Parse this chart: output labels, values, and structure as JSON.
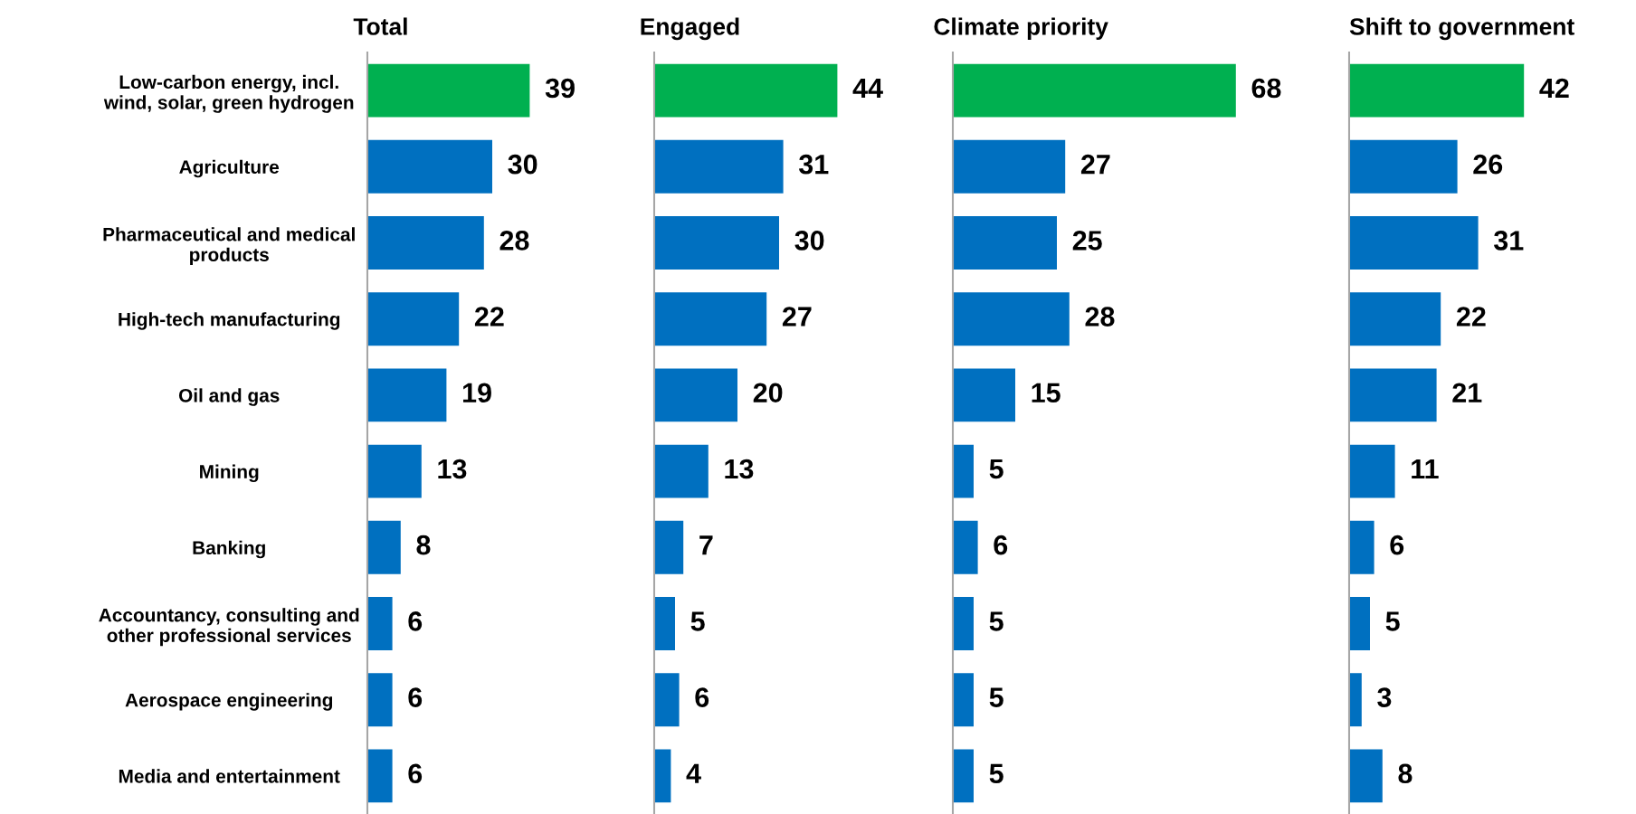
{
  "chart_data": [
    {
      "type": "bar",
      "orientation": "horizontal",
      "title": "Total",
      "categories": [
        "Low-carbon energy, incl.\nwind, solar, green hydrogen",
        "Agriculture",
        "Pharmaceutical and medical\nproducts",
        "High-tech manufacturing",
        "Oil and gas",
        "Mining",
        "Banking",
        "Accountancy, consulting and\nother professional services",
        "Aerospace engineering",
        "Media and entertainment"
      ],
      "values": [
        39,
        30,
        28,
        22,
        19,
        13,
        8,
        6,
        6,
        6
      ],
      "colors": [
        "#00b050",
        "#0070c0",
        "#0070c0",
        "#0070c0",
        "#0070c0",
        "#0070c0",
        "#0070c0",
        "#0070c0",
        "#0070c0",
        "#0070c0"
      ],
      "data_labels": true,
      "tick_labels": "y"
    },
    {
      "type": "bar",
      "orientation": "horizontal",
      "title": "Engaged",
      "categories": [
        null,
        null,
        null,
        null,
        null,
        null,
        null,
        null,
        null,
        null
      ],
      "values": [
        44,
        31,
        30,
        27,
        20,
        13,
        7,
        5,
        6,
        4
      ],
      "colors": [
        "#00b050",
        "#0070c0",
        "#0070c0",
        "#0070c0",
        "#0070c0",
        "#0070c0",
        "#0070c0",
        "#0070c0",
        "#0070c0",
        "#0070c0"
      ],
      "data_labels": true
    },
    {
      "type": "bar",
      "orientation": "horizontal",
      "title": "Climate priority",
      "categories": [
        null,
        null,
        null,
        null,
        null,
        null,
        null,
        null,
        null,
        null
      ],
      "values": [
        68,
        27,
        25,
        28,
        15,
        5,
        6,
        5,
        5,
        5
      ],
      "colors": [
        "#00b050",
        "#0070c0",
        "#0070c0",
        "#0070c0",
        "#0070c0",
        "#0070c0",
        "#0070c0",
        "#0070c0",
        "#0070c0",
        "#0070c0"
      ],
      "data_labels": true
    },
    {
      "type": "bar",
      "orientation": "horizontal",
      "title": "Shift to government",
      "categories": [
        null,
        null,
        null,
        null,
        null,
        null,
        null,
        null,
        null,
        null
      ],
      "values": [
        42,
        26,
        31,
        22,
        21,
        11,
        6,
        5,
        3,
        8
      ],
      "colors": [
        "#00b050",
        "#0070c0",
        "#0070c0",
        "#0070c0",
        "#0070c0",
        "#0070c0",
        "#0070c0",
        "#0070c0",
        "#0070c0",
        "#0070c0"
      ],
      "data_labels": true
    }
  ]
}
